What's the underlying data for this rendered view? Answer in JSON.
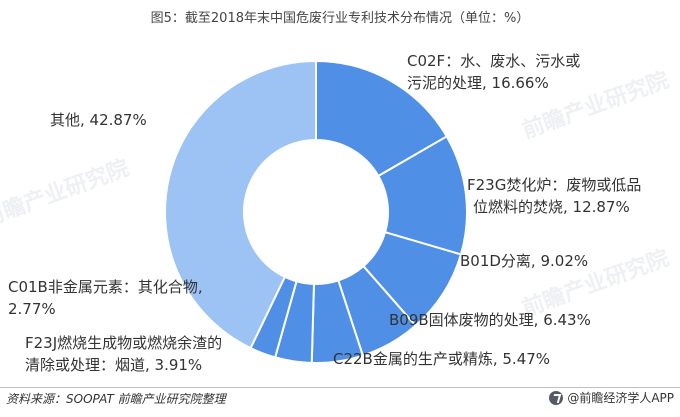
{
  "title": "图5：截至2018年末中国危废行业专利技术分布情况（单位：%）",
  "chart_data": {
    "type": "pie",
    "donut": true,
    "title": "图5：截至2018年末中国危废行业专利技术分布情况（单位：%）",
    "slices": [
      {
        "name": "C02F：水、废水、污水或污泥的处理",
        "value": 16.66,
        "label_lines": [
          "C02F：水、废水、污水或",
          "污泥的处理, 16.66%"
        ],
        "color": "#4f8fe6"
      },
      {
        "name": "F23G焚化炉：废物或低品位燃料的焚烧",
        "value": 12.87,
        "label_lines": [
          "F23G焚化炉：废物或低品",
          "位燃料的焚烧, 12.87%"
        ],
        "color": "#4f8fe6"
      },
      {
        "name": "B01D分离",
        "value": 9.02,
        "label_lines": [
          "B01D分离, 9.02%"
        ],
        "color": "#4f8fe6"
      },
      {
        "name": "B09B固体废物的处理",
        "value": 6.43,
        "label_lines": [
          "B09B固体废物的处理, 6.43%"
        ],
        "color": "#4f8fe6"
      },
      {
        "name": "C22B金属的生产或精炼",
        "value": 5.47,
        "label_lines": [
          "C22B金属的生产或精炼, 5.47%"
        ],
        "color": "#4f8fe6"
      },
      {
        "name": "F23J燃烧生成物或燃烧余渣的清除或处理：烟道",
        "value": 3.91,
        "label_lines": [
          "F23J燃烧生成物或燃烧余渣的",
          "清除或处理：烟道, 3.91%"
        ],
        "color": "#4f8fe6"
      },
      {
        "name": "C01B非金属元素：其化合物",
        "value": 2.77,
        "label_lines": [
          "C01B非金属元素：其化合物,",
          "2.77%"
        ],
        "color": "#4f8fe6"
      },
      {
        "name": "其他",
        "value": 42.87,
        "label_lines": [
          "其他, 42.87%"
        ],
        "color": "#9dc3f5"
      }
    ]
  },
  "watermark_text": "前瞻产业研究院",
  "footer": {
    "source": "资料来源：SOOPAT 前瞻产业研究院整理",
    "brand": "@前瞻经济学人APP"
  }
}
